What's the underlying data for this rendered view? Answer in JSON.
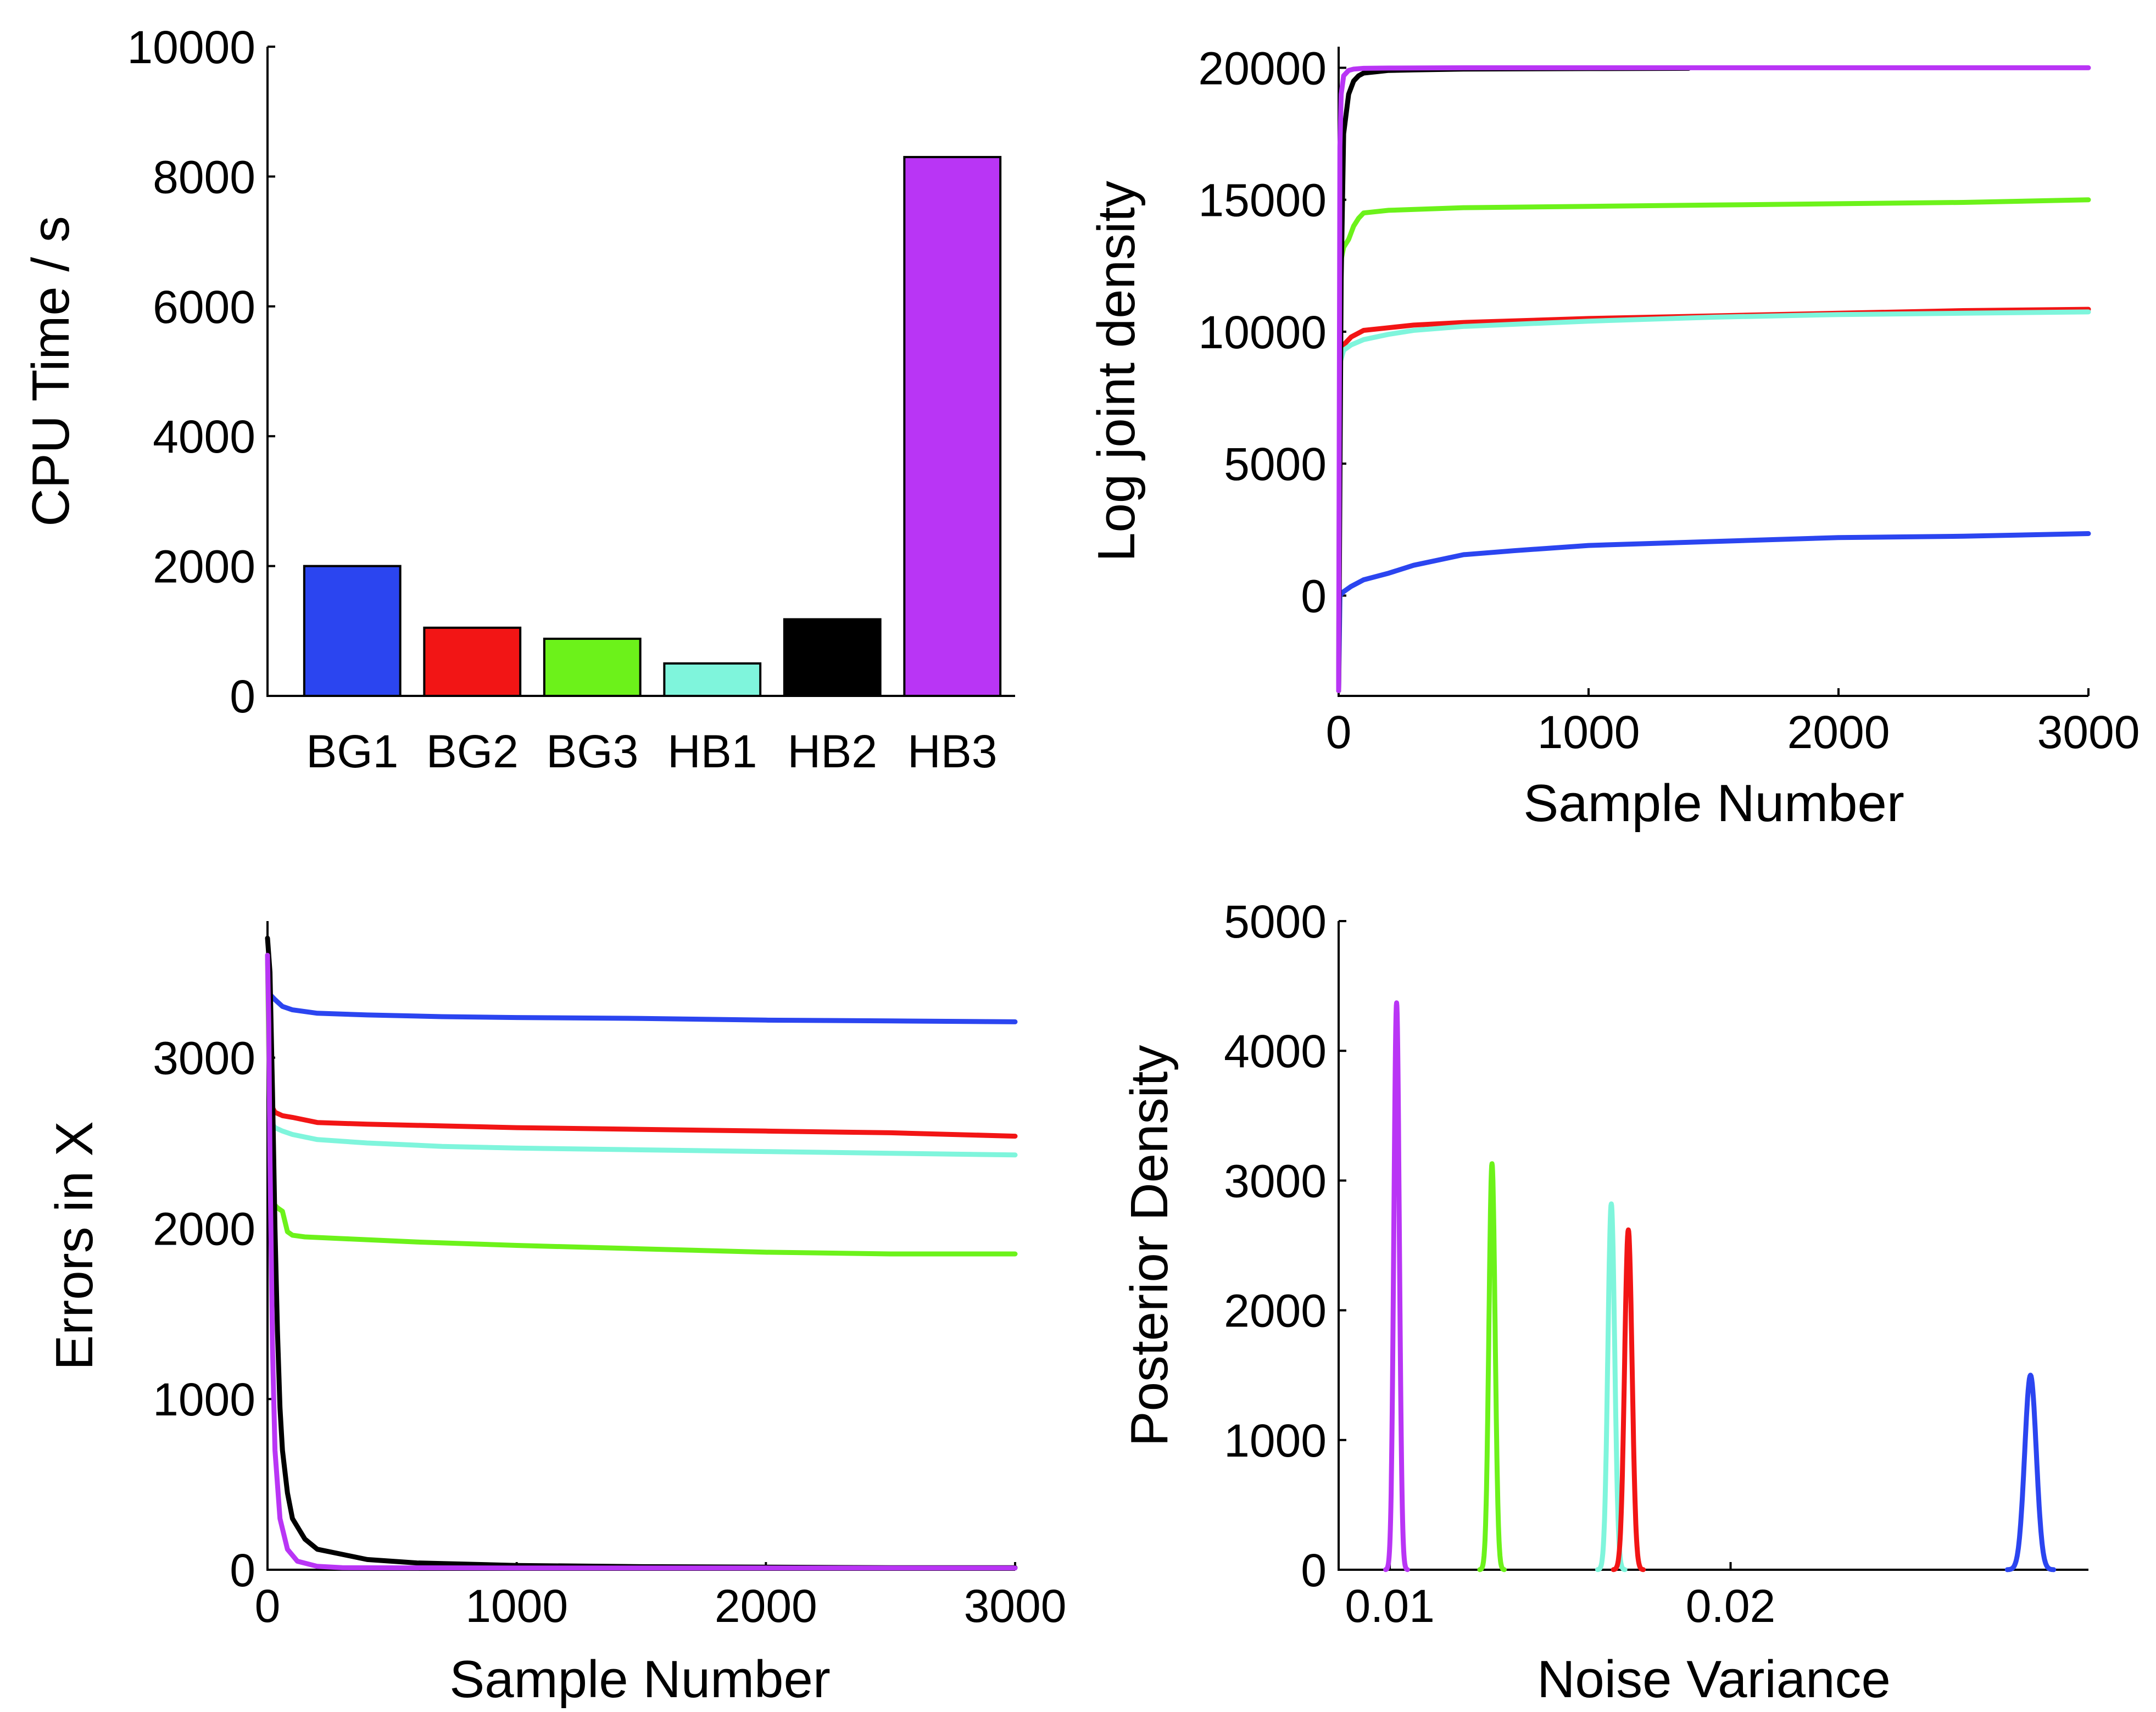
{
  "colors": {
    "BG1": "#2b45f0",
    "BG2": "#f21515",
    "BG3": "#6cf21a",
    "HB1": "#7ff5dc",
    "HB2": "#000000",
    "HB3": "#b935f5"
  },
  "chart_data": [
    {
      "type": "bar",
      "title": "",
      "xlabel": "",
      "ylabel": "CPU Time / s",
      "ylim": [
        0,
        10000
      ],
      "yticks": [
        "0",
        "2000",
        "4000",
        "6000",
        "8000",
        "10000"
      ],
      "categories": [
        "BG1",
        "BG2",
        "BG3",
        "HB1",
        "HB2",
        "HB3"
      ],
      "values": [
        2000,
        1050,
        880,
        500,
        1180,
        8300
      ]
    },
    {
      "type": "line",
      "title": "",
      "xlabel": "Sample Number",
      "ylabel": "Log joint density",
      "xlim": [
        0,
        3000
      ],
      "ylim": [
        -3800,
        20800
      ],
      "xticks": [
        "0",
        "1000",
        "2000",
        "3000"
      ],
      "yticks": [
        "0",
        "5000",
        "10000",
        "15000",
        "20000"
      ],
      "series": [
        {
          "name": "BG1",
          "x": [
            0,
            5,
            20,
            50,
            100,
            200,
            300,
            500,
            700,
            1000,
            1500,
            2000,
            2500,
            3000
          ],
          "y": [
            -3600,
            0,
            150,
            350,
            600,
            850,
            1150,
            1550,
            1700,
            1900,
            2050,
            2200,
            2250,
            2350
          ]
        },
        {
          "name": "BG2",
          "x": [
            0,
            5,
            20,
            50,
            100,
            200,
            300,
            500,
            1000,
            1500,
            2000,
            2500,
            3000
          ],
          "y": [
            -3600,
            9000,
            9500,
            9800,
            10050,
            10150,
            10250,
            10350,
            10500,
            10600,
            10700,
            10800,
            10850
          ]
        },
        {
          "name": "BG3",
          "x": [
            0,
            5,
            20,
            40,
            60,
            80,
            100,
            200,
            500,
            1000,
            1500,
            2000,
            2500,
            3000
          ],
          "y": [
            -3600,
            12500,
            13200,
            13500,
            14000,
            14300,
            14500,
            14600,
            14700,
            14750,
            14800,
            14850,
            14900,
            15000
          ]
        },
        {
          "name": "HB1",
          "x": [
            0,
            5,
            20,
            50,
            100,
            200,
            300,
            500,
            1000,
            1500,
            2000,
            2500,
            3000
          ],
          "y": [
            -3600,
            8800,
            9300,
            9500,
            9700,
            9900,
            10050,
            10200,
            10400,
            10550,
            10650,
            10700,
            10750
          ]
        },
        {
          "name": "HB2",
          "x": [
            0,
            10,
            20,
            40,
            60,
            80,
            100,
            150,
            200,
            300,
            500,
            1000,
            1400
          ],
          "y": [
            -3600,
            12000,
            17500,
            19000,
            19500,
            19700,
            19800,
            19850,
            19900,
            19920,
            19950,
            19970,
            19980
          ]
        },
        {
          "name": "HB3",
          "x": [
            0,
            5,
            10,
            20,
            40,
            60,
            100,
            200,
            500,
            1000,
            2000,
            3000
          ],
          "y": [
            -3600,
            17000,
            19000,
            19700,
            19900,
            19950,
            19980,
            19990,
            20000,
            20000,
            20000,
            20000
          ]
        }
      ]
    },
    {
      "type": "line",
      "title": "",
      "xlabel": "Sample Number",
      "ylabel": "Errors in X",
      "xlim": [
        0,
        3000
      ],
      "ylim": [
        0,
        3800
      ],
      "xticks": [
        "0",
        "1000",
        "2000",
        "3000"
      ],
      "yticks": [
        "0",
        "1000",
        "2000",
        "3000"
      ],
      "series": [
        {
          "name": "BG1",
          "x": [
            0,
            10,
            30,
            60,
            100,
            200,
            400,
            700,
            1000,
            1500,
            2000,
            2500,
            3000
          ],
          "y": [
            3600,
            3370,
            3340,
            3300,
            3280,
            3260,
            3250,
            3240,
            3235,
            3230,
            3220,
            3215,
            3210
          ]
        },
        {
          "name": "BG2",
          "x": [
            0,
            15,
            30,
            60,
            100,
            200,
            400,
            700,
            1000,
            1500,
            2000,
            2500,
            3000
          ],
          "y": [
            3600,
            2720,
            2680,
            2660,
            2650,
            2620,
            2610,
            2600,
            2590,
            2580,
            2570,
            2560,
            2540
          ]
        },
        {
          "name": "BG3",
          "x": [
            0,
            10,
            20,
            40,
            60,
            80,
            100,
            150,
            300,
            600,
            1000,
            1500,
            2000,
            2500,
            3000
          ],
          "y": [
            3600,
            2500,
            2150,
            2120,
            2100,
            1980,
            1960,
            1950,
            1940,
            1920,
            1900,
            1880,
            1860,
            1850,
            1850
          ]
        },
        {
          "name": "HB1",
          "x": [
            0,
            15,
            30,
            60,
            100,
            200,
            400,
            700,
            1000,
            1500,
            2000,
            2500,
            3000
          ],
          "y": [
            3600,
            2620,
            2590,
            2570,
            2550,
            2520,
            2500,
            2480,
            2470,
            2460,
            2450,
            2440,
            2430
          ]
        },
        {
          "name": "HB2",
          "x": [
            0,
            10,
            20,
            30,
            40,
            50,
            60,
            80,
            100,
            150,
            200,
            300,
            400,
            600,
            1000,
            1500,
            2000,
            2500,
            3000
          ],
          "y": [
            3700,
            3500,
            2800,
            2000,
            1400,
            950,
            700,
            450,
            300,
            180,
            120,
            90,
            60,
            40,
            25,
            18,
            15,
            12,
            12
          ]
        },
        {
          "name": "HB3",
          "x": [
            0,
            5,
            10,
            20,
            30,
            50,
            80,
            120,
            200,
            300,
            1000,
            2000,
            3000
          ],
          "y": [
            3600,
            3200,
            2400,
            1300,
            700,
            300,
            120,
            50,
            20,
            12,
            10,
            10,
            10
          ]
        }
      ]
    },
    {
      "type": "line",
      "title": "",
      "xlabel": "Noise Variance",
      "ylabel": "Posterior Density",
      "xlim": [
        0.0085,
        0.0305
      ],
      "ylim": [
        0,
        5000
      ],
      "xticks": [
        "0.01",
        "0.02"
      ],
      "xtick_values": [
        0.01,
        0.02
      ],
      "yticks": [
        "0",
        "1000",
        "2000",
        "3000",
        "4000",
        "5000"
      ],
      "series": [
        {
          "name": "HB3",
          "center": 0.0102,
          "sd": 8e-05,
          "peak": 4370
        },
        {
          "name": "BG3",
          "center": 0.013,
          "sd": 9e-05,
          "peak": 3130
        },
        {
          "name": "HB1",
          "center": 0.0165,
          "sd": 0.0001,
          "peak": 2820
        },
        {
          "name": "BG2",
          "center": 0.017,
          "sd": 0.00011,
          "peak": 2620
        },
        {
          "name": "BG1",
          "center": 0.0288,
          "sd": 0.00017,
          "peak": 1500
        }
      ]
    }
  ]
}
